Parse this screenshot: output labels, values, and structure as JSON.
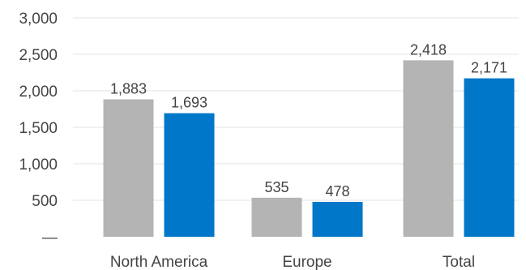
{
  "chart_data": {
    "type": "bar",
    "title": "",
    "xlabel": "",
    "ylabel": "",
    "categories": [
      "North America",
      "Europe",
      "Total"
    ],
    "series": [
      {
        "values": [
          1883,
          535,
          2418
        ],
        "color": "#b4b4b4"
      },
      {
        "values": [
          1693,
          478,
          2171
        ],
        "color": "#0077c8"
      }
    ],
    "data_labels": [
      [
        "1,883",
        "535",
        "2,418"
      ],
      [
        "1,693",
        "478",
        "2,171"
      ]
    ],
    "ylim": [
      0,
      3000
    ],
    "yticks": [
      0,
      500,
      1000,
      1500,
      2000,
      2500,
      3000
    ],
    "ytick_labels": [
      "—",
      "500",
      "1,000",
      "1,500",
      "2,000",
      "2,500",
      "3,000"
    ],
    "grid": true,
    "legend": "none"
  }
}
